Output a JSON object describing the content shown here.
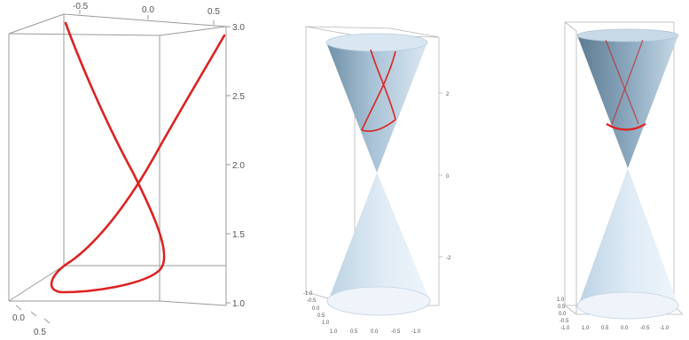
{
  "panels": [
    {
      "id": "curve-plot",
      "top_x_ticks": [
        "-0.5",
        "0.0",
        "0.5"
      ],
      "right_z_ticks": [
        "3.0",
        "2.5",
        "2.0",
        "1.5",
        "1.0"
      ],
      "bottom_left_ticks": [
        "0.0",
        "0.5"
      ],
      "curve_color": "#dd2222"
    },
    {
      "id": "cone-plot-middle",
      "right_ticks": [
        "2",
        "0",
        "-2"
      ],
      "bottom_ticks_a": [
        "-1.0",
        "-0.5",
        "0.0",
        "0.5",
        "1.0"
      ],
      "bottom_ticks_b": [
        "1.0",
        "0.5",
        "0.0",
        "-0.5",
        "-1.0"
      ],
      "surface_color": "#cfe0ee",
      "curve_color": "#dd2222"
    },
    {
      "id": "cone-plot-right",
      "bottom_ticks_a": [
        "1.0",
        "0.5",
        "0.0",
        "-0.5",
        "-1.0"
      ],
      "bottom_ticks_b": [
        "1.0",
        "0.5",
        "0.0",
        "-0.5",
        "-1.0"
      ],
      "surface_color": "#cfe0ee",
      "curve_color": "#dd2222"
    }
  ]
}
